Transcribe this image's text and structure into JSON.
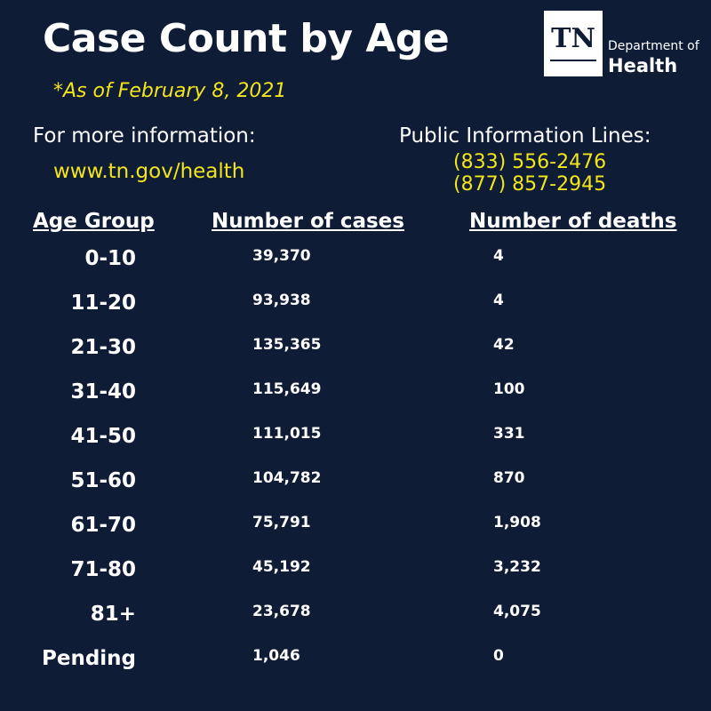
{
  "title": "Case Count by Age",
  "as_of": "*As of February 8, 2021",
  "logo": {
    "mark": "TN",
    "department": "Department of",
    "health": "Health"
  },
  "more_info": {
    "label": "For more information:",
    "url": "www.tn.gov/health"
  },
  "public_lines": {
    "label": "Public Information Lines:",
    "phones": [
      "(833) 556-2476",
      "(877) 857-2945"
    ]
  },
  "table": {
    "headers": {
      "age": "Age Group",
      "cases": "Number of cases",
      "deaths": "Number of deaths"
    },
    "rows": [
      {
        "age": "0-10",
        "cases": "39,370",
        "deaths": "4"
      },
      {
        "age": "11-20",
        "cases": "93,938",
        "deaths": "4"
      },
      {
        "age": "21-30",
        "cases": "135,365",
        "deaths": "42"
      },
      {
        "age": "31-40",
        "cases": "115,649",
        "deaths": "100"
      },
      {
        "age": "41-50",
        "cases": "111,015",
        "deaths": "331"
      },
      {
        "age": "51-60",
        "cases": "104,782",
        "deaths": "870"
      },
      {
        "age": "61-70",
        "cases": "75,791",
        "deaths": "1,908"
      },
      {
        "age": "71-80",
        "cases": "45,192",
        "deaths": "3,232"
      },
      {
        "age": "81+",
        "cases": "23,678",
        "deaths": "4,075"
      },
      {
        "age": "Pending",
        "cases": "1,046",
        "deaths": "0"
      }
    ]
  },
  "colors": {
    "background": "#0e1c36",
    "accent_yellow": "#f3e51c",
    "text": "#ffffff"
  }
}
